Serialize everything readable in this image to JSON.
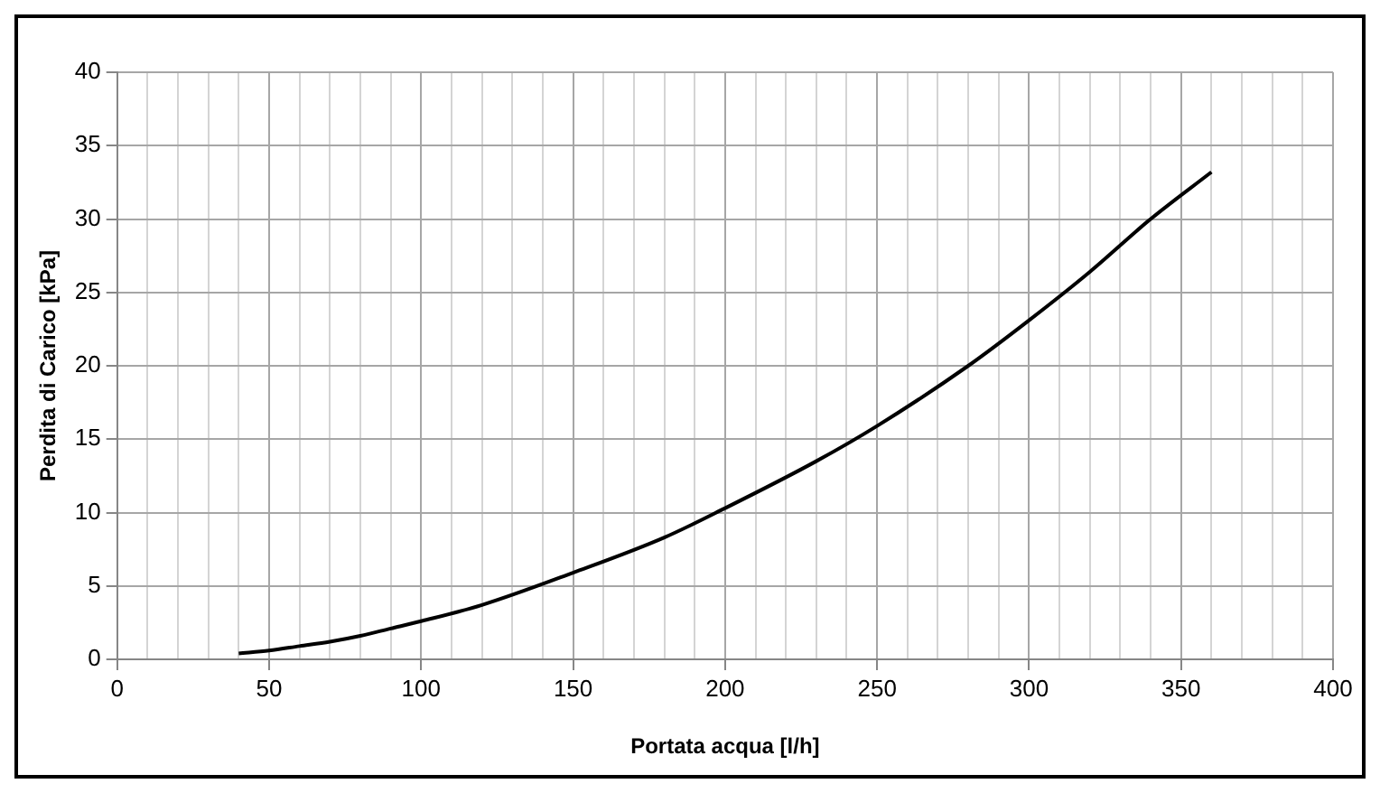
{
  "chart_data": {
    "type": "line",
    "xlabel": "Portata acqua [l/h]",
    "ylabel": "Perdita di Carico [kPa]",
    "x": [
      40,
      50,
      60,
      70,
      80,
      90,
      100,
      120,
      150,
      180,
      200,
      230,
      250,
      280,
      300,
      320,
      340,
      360
    ],
    "series": [
      {
        "color": "#000000",
        "values": [
          0.4,
          0.6,
          0.9,
          1.2,
          1.6,
          2.1,
          2.6,
          3.7,
          5.9,
          8.3,
          10.3,
          13.5,
          15.9,
          20,
          23.1,
          26.4,
          30,
          33.2
        ]
      }
    ],
    "xlim": [
      0,
      400
    ],
    "xticks": [
      0,
      {
        "value": 10,
        "label": null
      },
      {
        "value": 20,
        "label": null
      },
      {
        "value": 30,
        "label": null
      },
      {
        "value": 40,
        "label": null
      },
      50,
      {
        "value": 60,
        "label": null
      },
      {
        "value": 70,
        "label": null
      },
      {
        "value": 80,
        "label": null
      },
      {
        "value": 90,
        "label": null
      },
      100,
      {
        "value": 110,
        "label": null
      },
      {
        "value": 120,
        "label": null
      },
      {
        "value": 130,
        "label": null
      },
      {
        "value": 140,
        "label": null
      },
      150,
      {
        "value": 160,
        "label": null
      },
      {
        "value": 170,
        "label": null
      },
      {
        "value": 180,
        "label": null
      },
      {
        "value": 190,
        "label": null
      },
      200,
      {
        "value": 210,
        "label": null
      },
      {
        "value": 220,
        "label": null
      },
      {
        "value": 230,
        "label": null
      },
      {
        "value": 240,
        "label": null
      },
      250,
      {
        "value": 260,
        "label": null
      },
      {
        "value": 270,
        "label": null
      },
      {
        "value": 280,
        "label": null
      },
      {
        "value": 290,
        "label": null
      },
      300,
      {
        "value": 310,
        "label": null
      },
      {
        "value": 320,
        "label": null
      },
      {
        "value": 330,
        "label": null
      },
      {
        "value": 340,
        "label": null
      },
      350,
      {
        "value": 360,
        "label": null
      },
      {
        "value": 370,
        "label": null
      },
      {
        "value": 380,
        "label": null
      },
      {
        "value": 390,
        "label": null
      },
      400
    ],
    "ylim": [
      0,
      40
    ],
    "yticks": [
      0,
      5,
      10,
      15,
      20,
      25,
      30,
      35,
      40
    ],
    "grid": true,
    "marker": "none",
    "line_style": "solid"
  }
}
